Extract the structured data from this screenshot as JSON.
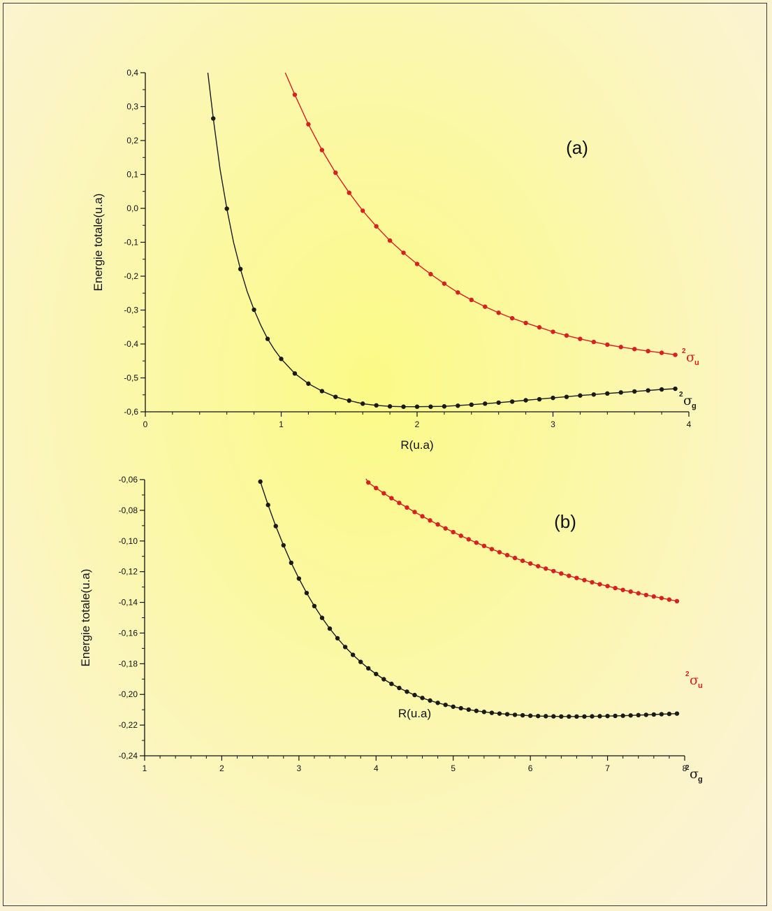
{
  "chart_data": [
    {
      "panel": "a",
      "type": "line",
      "title": "(a)",
      "xlabel": "R(u.a)",
      "ylabel": "Energie totale(u.a)",
      "xlim": [
        0,
        4
      ],
      "ylim": [
        -0.6,
        0.4
      ],
      "xticks": [
        0,
        1,
        2,
        3,
        4
      ],
      "xtick_labels": [
        "0",
        "1",
        "2",
        "3",
        "4"
      ],
      "yticks": [
        -0.6,
        -0.5,
        -0.4,
        -0.3,
        -0.2,
        -0.1,
        0.0,
        0.1,
        0.2,
        0.3,
        0.4
      ],
      "ytick_labels": [
        "-0,6",
        "-0,5",
        "-0,4",
        "-0,3",
        "-0,2",
        "-0,1",
        "0,0",
        "0,1",
        "0,2",
        "0,3",
        "0,4"
      ],
      "series": [
        {
          "name": "²σg",
          "label_main": "σ",
          "label_sup": "2",
          "label_sub": "g",
          "color": "#1a1a1a",
          "line_x": [
            0.46,
            0.5,
            0.55,
            0.6,
            0.65,
            0.7,
            0.75,
            0.8,
            0.85,
            0.9,
            0.95,
            1.0,
            1.1,
            1.2,
            1.3,
            1.4,
            1.5,
            1.6,
            1.7,
            1.8,
            1.9,
            2.0,
            2.2,
            2.4,
            2.6,
            2.8,
            3.0,
            3.2,
            3.4,
            3.6,
            3.8,
            3.9
          ],
          "line_y": [
            0.4,
            0.265,
            0.115,
            -0.001,
            -0.101,
            -0.179,
            -0.246,
            -0.299,
            -0.345,
            -0.385,
            -0.417,
            -0.444,
            -0.487,
            -0.517,
            -0.539,
            -0.556,
            -0.567,
            -0.576,
            -0.581,
            -0.584,
            -0.585,
            -0.585,
            -0.584,
            -0.579,
            -0.573,
            -0.566,
            -0.559,
            -0.552,
            -0.546,
            -0.54,
            -0.534,
            -0.532
          ],
          "x": [
            0.5,
            0.6,
            0.7,
            0.8,
            0.9,
            1.0,
            1.1,
            1.2,
            1.3,
            1.4,
            1.5,
            1.6,
            1.7,
            1.8,
            1.9,
            2.0,
            2.1,
            2.2,
            2.3,
            2.4,
            2.5,
            2.6,
            2.7,
            2.8,
            2.9,
            3.0,
            3.1,
            3.2,
            3.3,
            3.4,
            3.5,
            3.6,
            3.7,
            3.8,
            3.9
          ],
          "y": [
            0.265,
            -0.001,
            -0.179,
            -0.299,
            -0.385,
            -0.444,
            -0.487,
            -0.517,
            -0.539,
            -0.556,
            -0.567,
            -0.576,
            -0.581,
            -0.584,
            -0.585,
            -0.585,
            -0.585,
            -0.584,
            -0.582,
            -0.579,
            -0.576,
            -0.573,
            -0.57,
            -0.566,
            -0.563,
            -0.559,
            -0.556,
            -0.552,
            -0.549,
            -0.546,
            -0.543,
            -0.54,
            -0.537,
            -0.534,
            -0.532
          ]
        },
        {
          "name": "²σu",
          "label_main": "σ",
          "label_sup": "2",
          "label_sub": "u",
          "color": "#d82020",
          "line_x": [
            1.03,
            1.1,
            1.2,
            1.3,
            1.4,
            1.5,
            1.6,
            1.7,
            1.8,
            1.9,
            2.0,
            2.1,
            2.2,
            2.3,
            2.4,
            2.5,
            2.6,
            2.7,
            2.8,
            2.9,
            3.0,
            3.1,
            3.2,
            3.3,
            3.4,
            3.5,
            3.6,
            3.7,
            3.8,
            3.9
          ],
          "line_y": [
            0.4,
            0.335,
            0.248,
            0.172,
            0.105,
            0.046,
            -0.007,
            -0.053,
            -0.095,
            -0.131,
            -0.164,
            -0.194,
            -0.222,
            -0.248,
            -0.27,
            -0.29,
            -0.308,
            -0.324,
            -0.338,
            -0.351,
            -0.364,
            -0.375,
            -0.385,
            -0.394,
            -0.402,
            -0.409,
            -0.415,
            -0.421,
            -0.426,
            -0.432
          ],
          "x": [
            1.1,
            1.2,
            1.3,
            1.4,
            1.5,
            1.6,
            1.7,
            1.8,
            1.9,
            2.0,
            2.1,
            2.2,
            2.3,
            2.4,
            2.5,
            2.6,
            2.7,
            2.8,
            2.9,
            3.0,
            3.1,
            3.2,
            3.3,
            3.4,
            3.5,
            3.6,
            3.7,
            3.8,
            3.9
          ],
          "y": [
            0.335,
            0.248,
            0.172,
            0.105,
            0.046,
            -0.007,
            -0.053,
            -0.095,
            -0.131,
            -0.164,
            -0.194,
            -0.222,
            -0.248,
            -0.27,
            -0.29,
            -0.308,
            -0.324,
            -0.338,
            -0.351,
            -0.364,
            -0.375,
            -0.385,
            -0.394,
            -0.402,
            -0.409,
            -0.415,
            -0.421,
            -0.426,
            -0.432
          ]
        }
      ]
    },
    {
      "panel": "b",
      "type": "line",
      "title": "(b)",
      "xlabel": "R(u.a)",
      "ylabel": "Energie totale(u.a)",
      "xlim": [
        1,
        8
      ],
      "ylim": [
        -0.24,
        -0.06
      ],
      "xticks": [
        1,
        2,
        3,
        4,
        5,
        6,
        7,
        8
      ],
      "xtick_labels": [
        "1",
        "2",
        "3",
        "4",
        "5",
        "6",
        "7",
        "8"
      ],
      "yticks": [
        -0.24,
        -0.22,
        -0.2,
        -0.18,
        -0.16,
        -0.14,
        -0.12,
        -0.1,
        -0.08,
        -0.06
      ],
      "ytick_labels": [
        "-0,24",
        "-0,22",
        "-0,20",
        "-0,18",
        "-0,16",
        "-0,14",
        "-0,12",
        "-0,10",
        "-0,08",
        "-0,06"
      ],
      "series": [
        {
          "name": "²σg",
          "label_main": "σ",
          "label_sup": "2",
          "label_sub": "g",
          "color": "#1a1a1a",
          "x": [
            2.5,
            2.6,
            2.7,
            2.8,
            2.9,
            3.0,
            3.1,
            3.2,
            3.3,
            3.4,
            3.5,
            3.6,
            3.7,
            3.8,
            3.9,
            4.0,
            4.1,
            4.2,
            4.3,
            4.4,
            4.5,
            4.6,
            4.7,
            4.8,
            4.9,
            5.0,
            5.1,
            5.2,
            5.3,
            5.4,
            5.5,
            5.6,
            5.7,
            5.8,
            5.9,
            6.0,
            6.1,
            6.2,
            6.3,
            6.4,
            6.5,
            6.6,
            6.7,
            6.8,
            6.9,
            7.0,
            7.1,
            7.2,
            7.3,
            7.4,
            7.5,
            7.6,
            7.7,
            7.8,
            7.9
          ],
          "y": [
            -0.0613,
            -0.0765,
            -0.0903,
            -0.1028,
            -0.1142,
            -0.1245,
            -0.1339,
            -0.1424,
            -0.1501,
            -0.1571,
            -0.1634,
            -0.1691,
            -0.1742,
            -0.1788,
            -0.183,
            -0.1867,
            -0.1901,
            -0.1931,
            -0.1958,
            -0.1982,
            -0.2004,
            -0.2023,
            -0.204,
            -0.2055,
            -0.2068,
            -0.208,
            -0.209,
            -0.2099,
            -0.2107,
            -0.2114,
            -0.212,
            -0.2125,
            -0.2129,
            -0.2133,
            -0.2136,
            -0.2139,
            -0.2141,
            -0.2142,
            -0.2143,
            -0.2144,
            -0.2144,
            -0.2144,
            -0.2144,
            -0.2143,
            -0.2142,
            -0.2141,
            -0.214,
            -0.2139,
            -0.2137,
            -0.2135,
            -0.2133,
            -0.2131,
            -0.2129,
            -0.2127,
            -0.2125
          ]
        },
        {
          "name": "²σu",
          "label_main": "σ",
          "label_sup": "2",
          "label_sub": "u",
          "color": "#d82020",
          "line_x": [
            3.87
          ],
          "line_y": [
            -0.0595
          ],
          "x": [
            3.9,
            4.0,
            4.1,
            4.2,
            4.3,
            4.4,
            4.5,
            4.6,
            4.7,
            4.8,
            4.9,
            5.0,
            5.1,
            5.2,
            5.3,
            5.4,
            5.5,
            5.6,
            5.7,
            5.8,
            5.9,
            6.0,
            6.1,
            6.2,
            6.3,
            6.4,
            6.5,
            6.6,
            6.7,
            6.8,
            6.9,
            7.0,
            7.1,
            7.2,
            7.3,
            7.4,
            7.5,
            7.6,
            7.7,
            7.8,
            7.9
          ],
          "y": [
            -0.0619,
            -0.0655,
            -0.0689,
            -0.0721,
            -0.0752,
            -0.0782,
            -0.0811,
            -0.0839,
            -0.0866,
            -0.0892,
            -0.0918,
            -0.0942,
            -0.0966,
            -0.0989,
            -0.1011,
            -0.1032,
            -0.1053,
            -0.1073,
            -0.1092,
            -0.1111,
            -0.1129,
            -0.1147,
            -0.1164,
            -0.118,
            -0.1196,
            -0.1212,
            -0.1227,
            -0.1241,
            -0.1255,
            -0.1269,
            -0.1282,
            -0.1294,
            -0.1307,
            -0.1319,
            -0.133,
            -0.1341,
            -0.1352,
            -0.1362,
            -0.1372,
            -0.1382,
            -0.1392
          ]
        }
      ]
    }
  ]
}
